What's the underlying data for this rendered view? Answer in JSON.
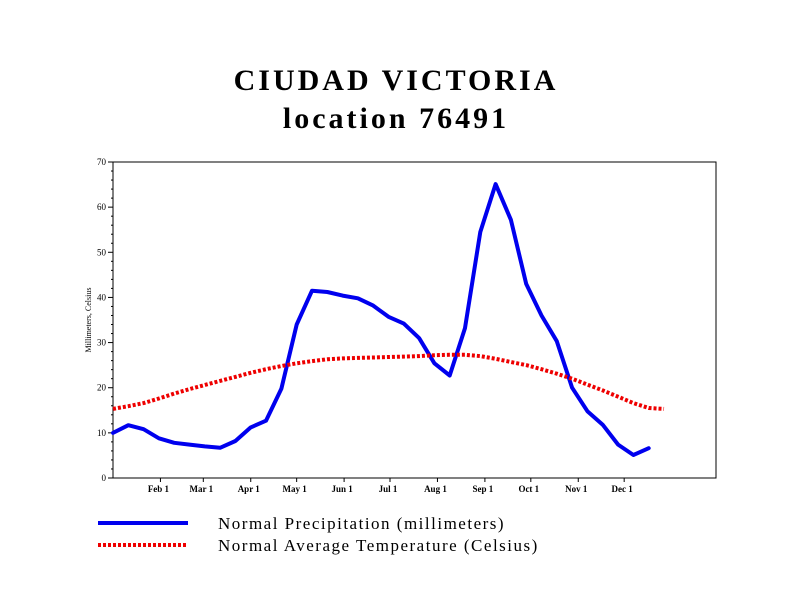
{
  "chart_data": {
    "type": "line",
    "title": "CIUDAD VICTORIA",
    "subtitle": "location 76491",
    "ylabel": "Millimeters, Celsius",
    "ylim": [
      0,
      70
    ],
    "yticks": [
      0,
      10,
      20,
      30,
      40,
      50,
      60,
      70
    ],
    "x_units": "day of year",
    "xlim": [
      1,
      395
    ],
    "xticks": [
      {
        "label": "Feb 1",
        "day": 32
      },
      {
        "label": "Mar 1",
        "day": 60
      },
      {
        "label": "Apr 1",
        "day": 91
      },
      {
        "label": "May 1",
        "day": 121
      },
      {
        "label": "Jun 1",
        "day": 152
      },
      {
        "label": "Jul 1",
        "day": 182
      },
      {
        "label": "Aug 1",
        "day": 213
      },
      {
        "label": "Sep 1",
        "day": 244
      },
      {
        "label": "Oct 1",
        "day": 274
      },
      {
        "label": "Nov 1",
        "day": 305
      },
      {
        "label": "Dec 1",
        "day": 335
      }
    ],
    "legend_position": "bottom",
    "series": [
      {
        "name": "Normal Precipitation (millimeters)",
        "color": "#0000ee",
        "style": "solid",
        "x": [
          1,
          11,
          21,
          31,
          41,
          51,
          61,
          71,
          81,
          91,
          101,
          111,
          121,
          131,
          141,
          151,
          161,
          171,
          181,
          191,
          201,
          211,
          221,
          231,
          241,
          251,
          261,
          271,
          281,
          291,
          301,
          311,
          321,
          331,
          341,
          351,
          361
        ],
        "values": [
          10.0,
          11.7,
          10.8,
          8.8,
          7.8,
          7.4,
          7.0,
          6.7,
          8.2,
          11.2,
          12.7,
          19.8,
          34.0,
          41.5,
          41.2,
          40.4,
          39.8,
          38.2,
          35.7,
          34.2,
          31.0,
          25.4,
          22.7,
          33.2,
          54.5,
          65.1,
          57.2,
          43.0,
          36.0,
          30.3,
          20.0,
          14.8,
          11.8,
          7.4,
          5.1,
          6.6,
          null
        ]
      },
      {
        "name": "Normal Average Temperature (Celsius)",
        "color": "#ee0000",
        "style": "dotted",
        "x": [
          1,
          11,
          21,
          31,
          41,
          51,
          61,
          71,
          81,
          91,
          101,
          111,
          121,
          131,
          141,
          151,
          161,
          171,
          181,
          191,
          201,
          211,
          221,
          231,
          241,
          251,
          261,
          271,
          281,
          291,
          301,
          311,
          321,
          331,
          341,
          351,
          361
        ],
        "values": [
          15.3,
          15.9,
          16.6,
          17.6,
          18.7,
          19.7,
          20.6,
          21.5,
          22.4,
          23.3,
          24.1,
          24.8,
          25.4,
          25.9,
          26.3,
          26.5,
          26.6,
          26.7,
          26.8,
          26.9,
          27.0,
          27.2,
          27.3,
          27.3,
          27.0,
          26.4,
          25.7,
          25.0,
          24.1,
          23.1,
          22.0,
          20.7,
          19.4,
          18.0,
          16.6,
          15.5,
          15.3
        ]
      }
    ]
  }
}
